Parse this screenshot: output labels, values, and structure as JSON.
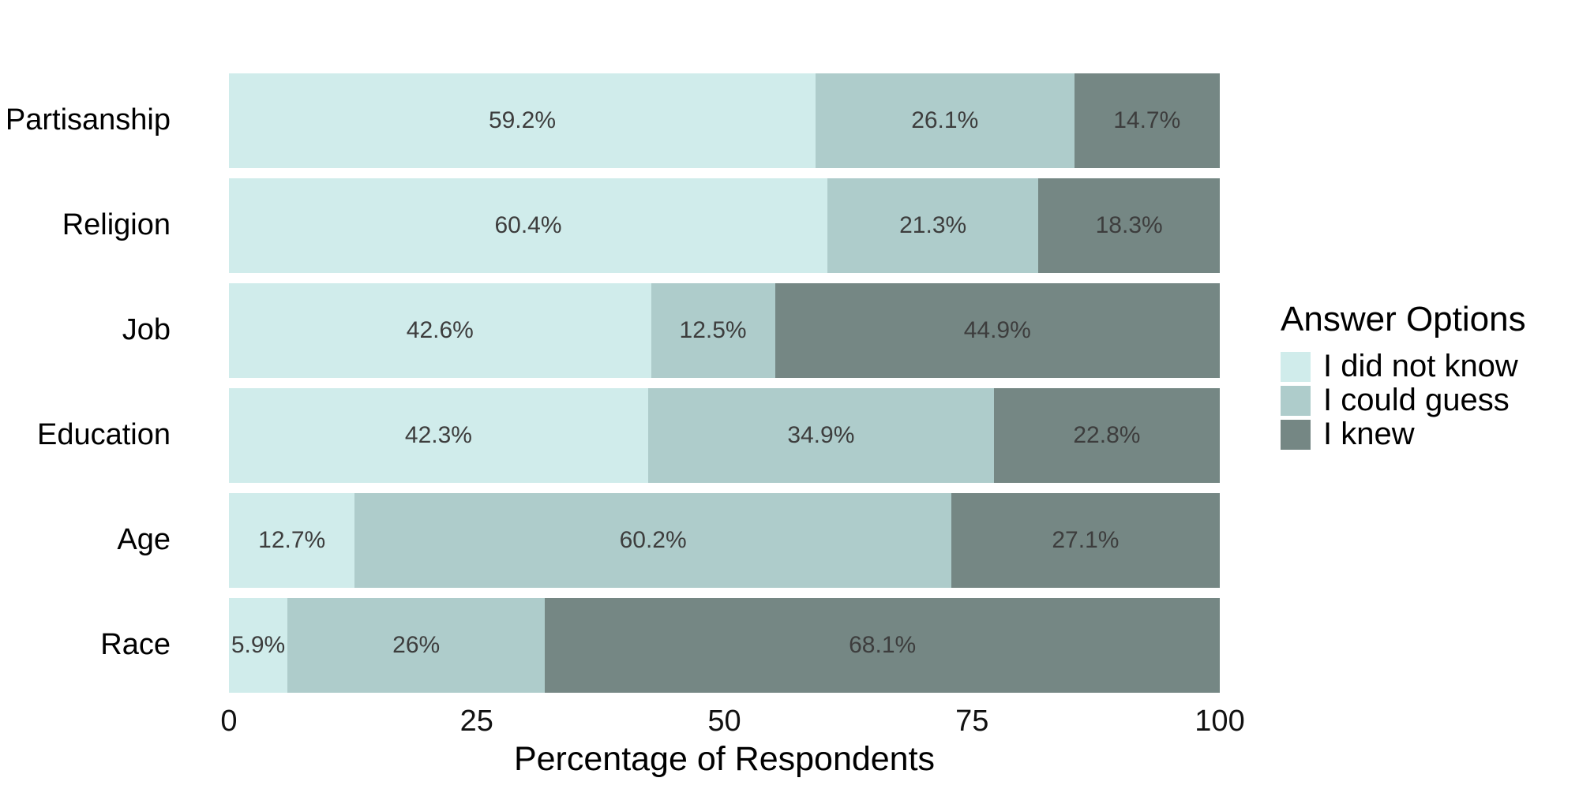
{
  "chart_data": {
    "type": "bar",
    "orientation": "horizontal",
    "stacked": true,
    "grid": false,
    "categories": [
      "Partisanship",
      "Religion",
      "Job",
      "Education",
      "Age",
      "Race"
    ],
    "series": [
      {
        "name": "I did not know",
        "color": "#d0eceb",
        "values": [
          59.2,
          60.4,
          42.6,
          42.3,
          12.7,
          5.9
        ],
        "labels": [
          "59.2%",
          "60.4%",
          "42.6%",
          "42.3%",
          "12.7%",
          "5.9%"
        ]
      },
      {
        "name": "I could guess",
        "color": "#aecccb",
        "values": [
          26.1,
          21.3,
          12.5,
          34.9,
          60.2,
          26
        ],
        "labels": [
          "26.1%",
          "21.3%",
          "12.5%",
          "34.9%",
          "60.2%",
          "26%"
        ]
      },
      {
        "name": "I knew",
        "color": "#758784",
        "values": [
          14.7,
          18.3,
          44.9,
          22.8,
          27.1,
          68.1
        ],
        "labels": [
          "14.7%",
          "18.3%",
          "44.9%",
          "22.8%",
          "27.1%",
          "68.1%"
        ]
      }
    ],
    "xlabel": "Percentage of Respondents",
    "xticks": [
      0,
      25,
      50,
      75,
      100
    ],
    "xlim": [
      0,
      100
    ],
    "legend": {
      "title": "Answer Options",
      "position": "right"
    },
    "label_color": "#3d3d3d",
    "background": "#ffffff"
  }
}
